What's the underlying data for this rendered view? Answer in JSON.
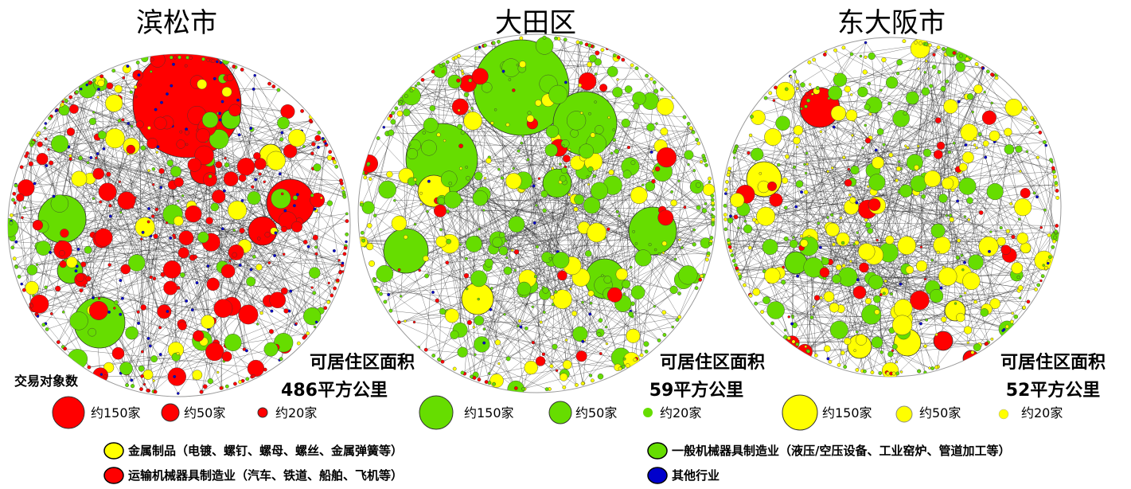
{
  "chart_data": [
    {
      "type": "network",
      "title": "滨松市",
      "area_label": "可居住区面积",
      "area_value": "486平方公里",
      "node_color": "#ff0000"
    },
    {
      "type": "network",
      "title": "大田区",
      "area_label": "可居住区面积",
      "area_value": "59平方公里",
      "node_color": "#66dd00"
    },
    {
      "type": "network",
      "title": "东大阪市",
      "area_label": "可居住区面积",
      "area_value": "52平方公里",
      "node_color": "#ffff00"
    }
  ],
  "size_legend": {
    "title": "交易对象数",
    "sizes": [
      "约150家",
      "约50家",
      "约20家"
    ]
  },
  "industry_legend": [
    {
      "label": "金属制品（电镀、螺钉、螺母、螺丝、金属弹簧等）",
      "color": "#ffff00"
    },
    {
      "label": "运输机械器具制造业（汽车、铁道、船舶、飞机等）",
      "color": "#ff0000"
    },
    {
      "label": "一般机械器具制造业（液压/空压设备、工业窑炉、管道加工等）",
      "color": "#66dd00"
    },
    {
      "label": "其他行业",
      "color": "#0000cc"
    }
  ],
  "colors": {
    "red": "#ff0000",
    "green": "#66dd00",
    "yellow": "#ffff00",
    "blue": "#0000cc",
    "edge": "#222222"
  }
}
